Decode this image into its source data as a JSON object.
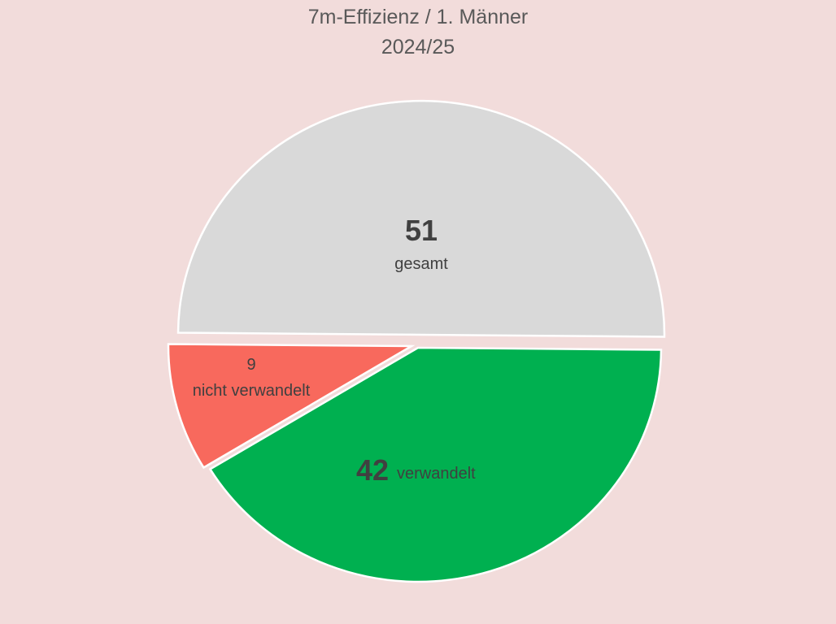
{
  "chart_data": {
    "type": "pie",
    "title": "7m-Effizienz / 1. Männer",
    "subtitle": "2024/25",
    "categories": [
      "gesamt",
      "verwandelt",
      "nicht verwandelt"
    ],
    "values": [
      51,
      42,
      9
    ],
    "colors": [
      "#d9d9d9",
      "#00b050",
      "#f8695d"
    ],
    "labels": [
      {
        "value": "51",
        "text": "gesamt"
      },
      {
        "value": "42",
        "text": "verwandelt"
      },
      {
        "value": "9",
        "text": "nicht verwandelt"
      }
    ]
  }
}
